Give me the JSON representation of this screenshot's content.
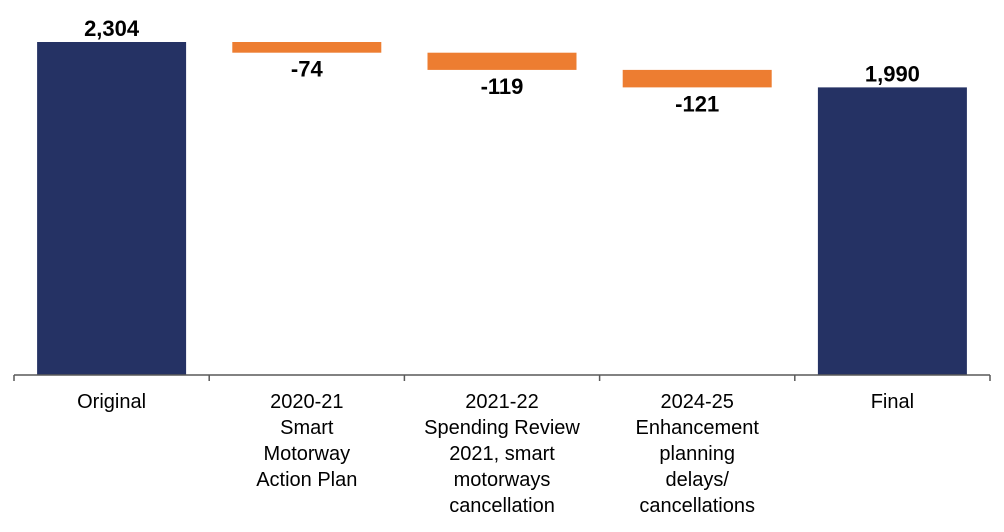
{
  "chart_data": {
    "type": "waterfall",
    "categories": [
      [
        "Original"
      ],
      [
        "2020-21",
        "Smart",
        "Motorway",
        "Action Plan"
      ],
      [
        "2021-22",
        "Spending  Review",
        "2021, smart",
        "motorways",
        "cancellation"
      ],
      [
        "2024-25",
        "Enhancement",
        "planning",
        "delays/",
        "cancellations"
      ],
      [
        "Final"
      ]
    ],
    "values": [
      2304,
      -74,
      -119,
      -121,
      1990
    ],
    "value_labels": [
      "2,304",
      "-74",
      "-119",
      "-121",
      "1,990"
    ],
    "kinds": [
      "total",
      "change",
      "change",
      "change",
      "total"
    ],
    "ylim": [
      0,
      2304
    ],
    "grid": false,
    "legend": "none",
    "colors": {
      "total": "#253264",
      "decrease": "#ED7D31",
      "axis": "#595959"
    }
  }
}
